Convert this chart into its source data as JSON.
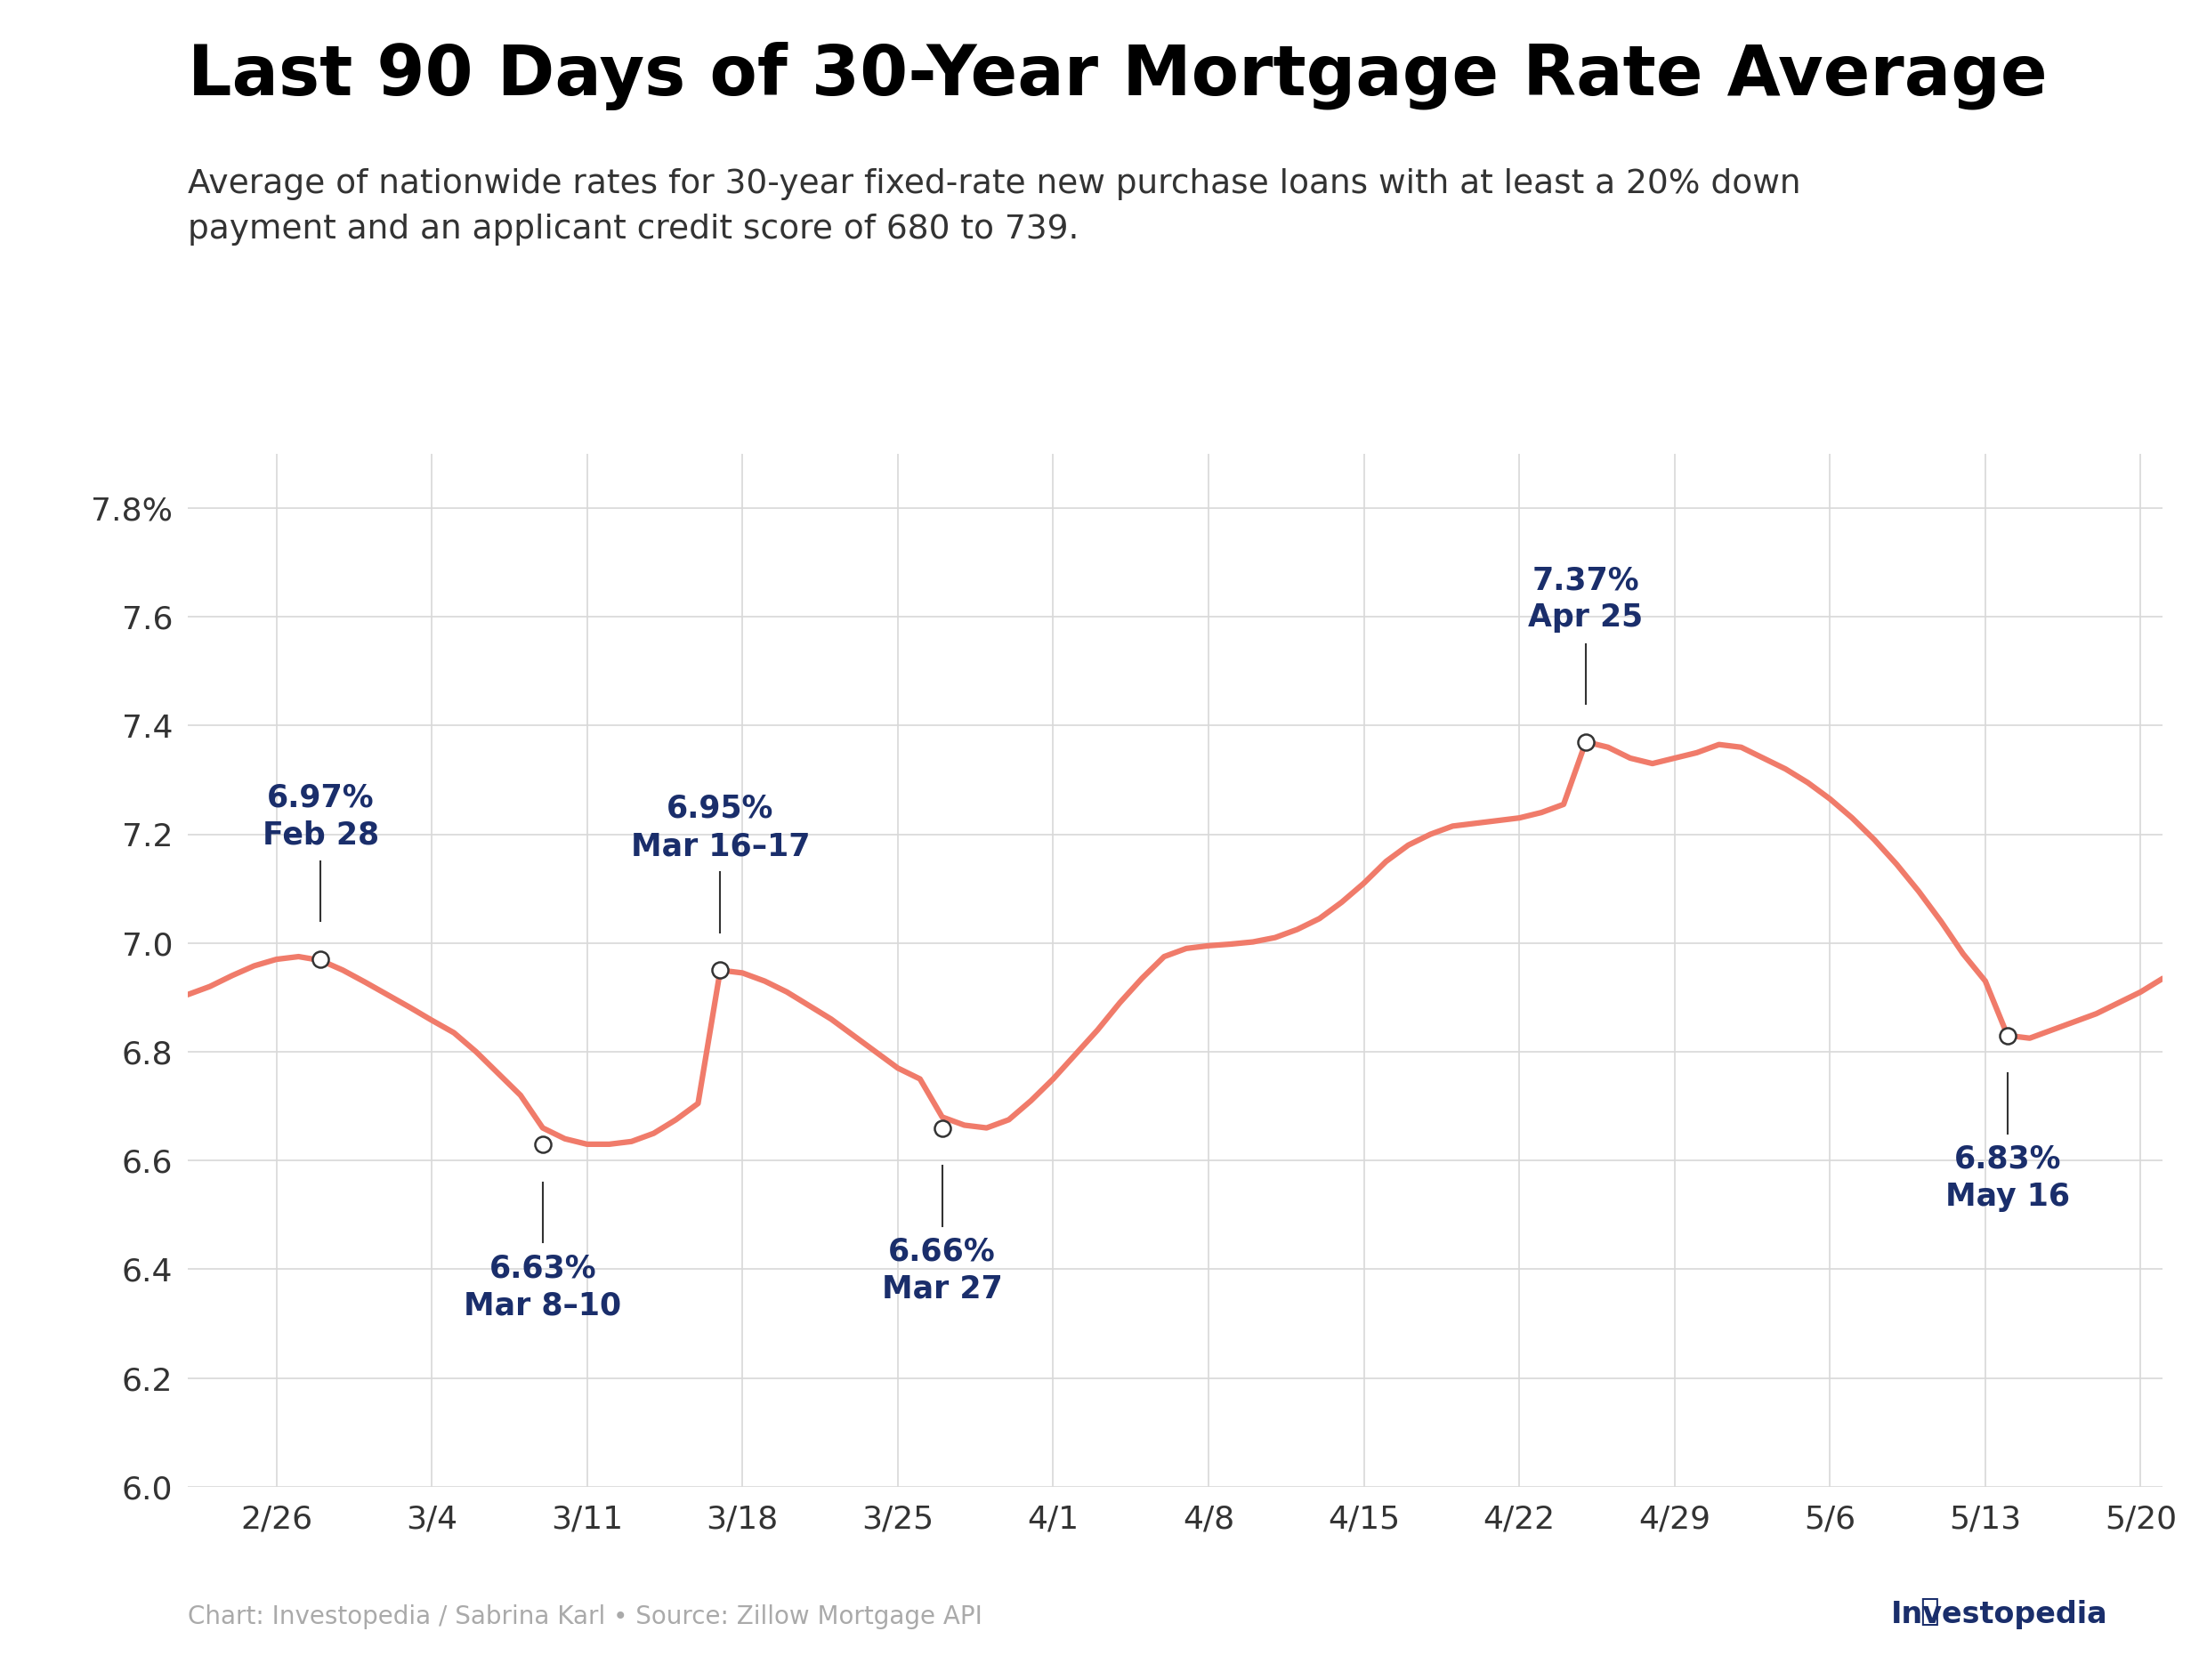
{
  "title": "Last 90 Days of 30-Year Mortgage Rate Average",
  "subtitle": "Average of nationwide rates for 30-year fixed-rate new purchase loans with at least a 20% down\npayment and an applicant credit score of 680 to 739.",
  "footer": "Chart: Investopedia / Sabrina Karl • Source: Zillow Mortgage API",
  "line_color": "#F07B6A",
  "background_color": "#ffffff",
  "title_color": "#000000",
  "annotation_color": "#1a2e6b",
  "grid_color": "#d8d8d8",
  "tick_color": "#333333",
  "ylim": [
    6.0,
    7.9
  ],
  "ytick_values": [
    6.0,
    6.2,
    6.4,
    6.6,
    6.8,
    7.0,
    7.2,
    7.4,
    7.6,
    7.8
  ],
  "x_labels": [
    "2/26",
    "3/4",
    "3/11",
    "3/18",
    "3/25",
    "4/1",
    "4/8",
    "4/15",
    "4/22",
    "4/29",
    "5/6",
    "5/13",
    "5/20"
  ],
  "x_tick_positions": [
    4,
    11,
    18,
    25,
    32,
    39,
    46,
    53,
    60,
    67,
    74,
    81,
    88
  ],
  "annotations": [
    {
      "label": "6.97%\nFeb 28",
      "x_idx": 6,
      "y": 6.97,
      "text_above": true
    },
    {
      "label": "6.63%\nMar 8–10",
      "x_idx": 16,
      "y": 6.63,
      "text_above": false
    },
    {
      "label": "6.95%\nMar 16–17",
      "x_idx": 24,
      "y": 6.95,
      "text_above": true
    },
    {
      "label": "6.66%\nMar 27",
      "x_idx": 34,
      "y": 6.66,
      "text_above": false
    },
    {
      "label": "7.37%\nApr 25",
      "x_idx": 63,
      "y": 7.37,
      "text_above": true
    },
    {
      "label": "6.83%\nMay 16",
      "x_idx": 82,
      "y": 6.83,
      "text_above": false
    }
  ],
  "rates": [
    6.905,
    6.92,
    6.94,
    6.958,
    6.97,
    6.975,
    6.968,
    6.95,
    6.928,
    6.905,
    6.882,
    6.858,
    6.835,
    6.8,
    6.76,
    6.72,
    6.66,
    6.64,
    6.63,
    6.63,
    6.635,
    6.65,
    6.675,
    6.705,
    6.95,
    6.945,
    6.93,
    6.91,
    6.885,
    6.86,
    6.83,
    6.8,
    6.77,
    6.75,
    6.68,
    6.665,
    6.66,
    6.675,
    6.71,
    6.75,
    6.795,
    6.84,
    6.89,
    6.935,
    6.975,
    6.99,
    6.995,
    6.998,
    7.002,
    7.01,
    7.025,
    7.045,
    7.075,
    7.11,
    7.15,
    7.18,
    7.2,
    7.215,
    7.22,
    7.225,
    7.23,
    7.24,
    7.255,
    7.37,
    7.36,
    7.34,
    7.33,
    7.34,
    7.35,
    7.365,
    7.36,
    7.34,
    7.32,
    7.295,
    7.265,
    7.23,
    7.19,
    7.145,
    7.095,
    7.04,
    6.98,
    6.93,
    6.83,
    6.825,
    6.84,
    6.855,
    6.87,
    6.89,
    6.91,
    6.935
  ]
}
